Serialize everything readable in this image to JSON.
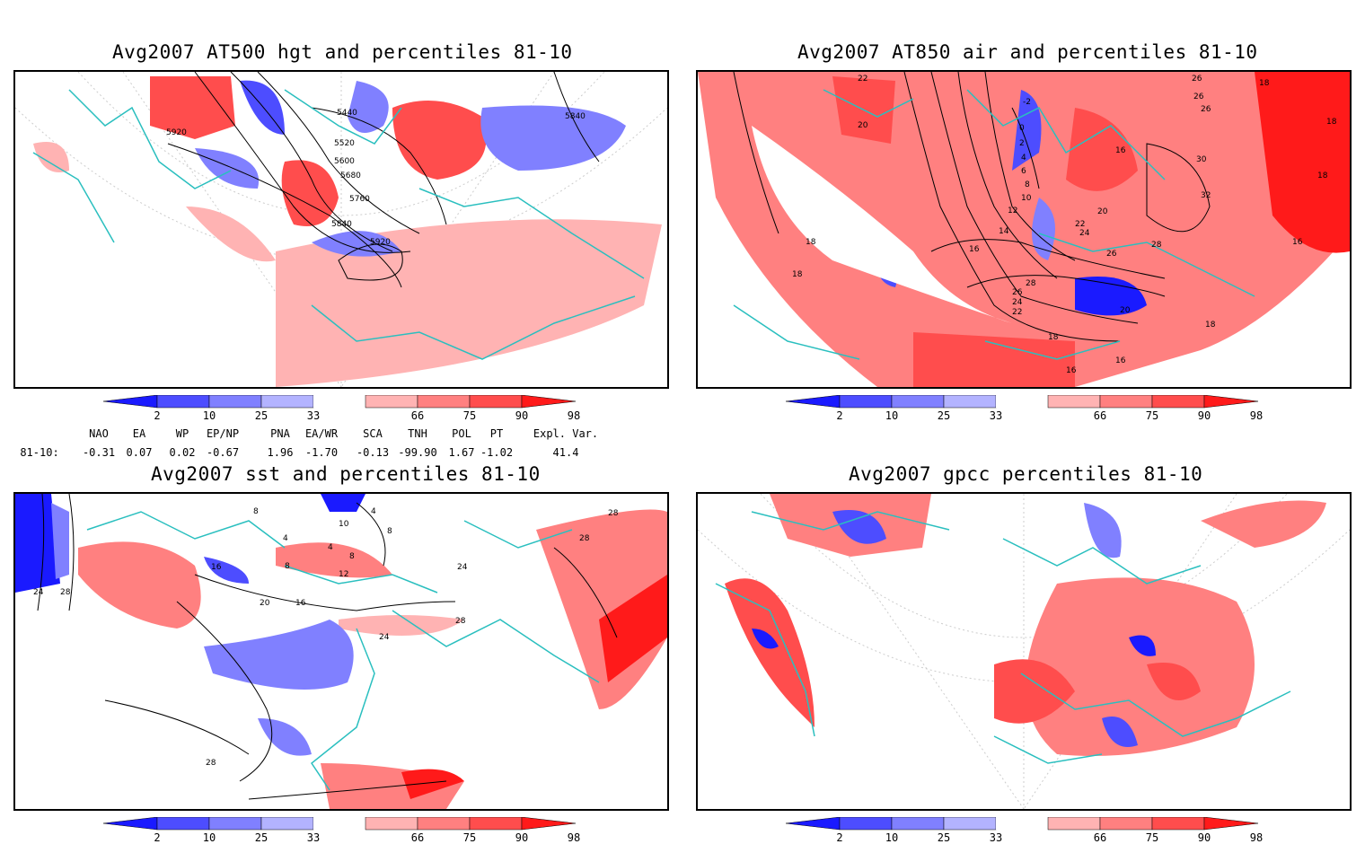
{
  "panels": [
    {
      "title": "Avg2007 AT500 hgt and percentiles 81-10",
      "contour_labels": [
        "5440",
        "5520",
        "5600",
        "5680",
        "5760",
        "5840",
        "5920",
        "5840",
        "5920"
      ]
    },
    {
      "title": "Avg2007 AT850 air and percentiles 81-10",
      "contour_labels": [
        "22",
        "20",
        "-2",
        "0",
        "2",
        "4",
        "6",
        "8",
        "10",
        "12",
        "14",
        "16",
        "18",
        "18",
        "16",
        "16",
        "18",
        "20",
        "22",
        "24",
        "26",
        "28",
        "28",
        "26",
        "24",
        "22",
        "20",
        "18",
        "16",
        "16",
        "18",
        "30",
        "32",
        "26",
        "26",
        "26",
        "18",
        "18",
        "18",
        "16"
      ]
    },
    {
      "title": "Avg2007 sst and percentiles 81-10",
      "contour_labels": [
        "8",
        "4",
        "4",
        "8",
        "8",
        "12",
        "16",
        "20",
        "16",
        "24",
        "28",
        "24",
        "28",
        "24",
        "28",
        "28",
        "28",
        "10",
        "4",
        "8"
      ]
    },
    {
      "title": "Avg2007 gpcc percentiles 81-10",
      "contour_labels": []
    }
  ],
  "colorbar": {
    "labels": [
      "2",
      "10",
      "25",
      "33",
      "66",
      "75",
      "90",
      "98"
    ],
    "colors": [
      "#1a1aff",
      "#4d4dff",
      "#8080ff",
      "#b3b3ff",
      "#ffffff",
      "#ffb3b3",
      "#ff8080",
      "#ff4d4d",
      "#ff1a1a"
    ]
  },
  "teleconnections": {
    "headers": [
      "NAO",
      "EA",
      "WP",
      "EP/NP",
      "PNA",
      "EA/WR",
      "SCA",
      "TNH",
      "POL",
      "PT",
      "Expl. Var."
    ],
    "row_label": "81-10:",
    "values": [
      "-0.31",
      "0.07",
      "0.02",
      "-0.67",
      "1.96",
      "-1.70",
      "-0.13",
      "-99.90",
      "1.67",
      "-1.02",
      "41.4"
    ]
  },
  "colors": {
    "coastline": "#2abfbf",
    "warm": "#ff4d4d",
    "cool": "#4d4dff"
  }
}
